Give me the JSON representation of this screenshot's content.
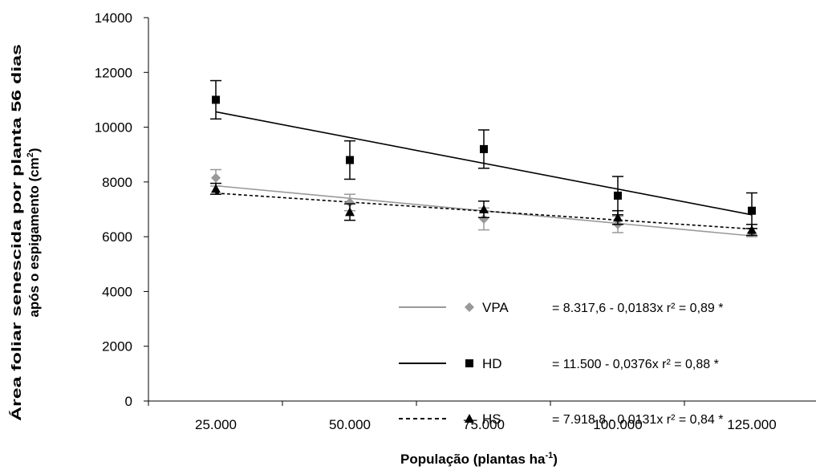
{
  "chart_data": {
    "type": "scatter",
    "xlabel": "População (plantas ha",
    "xlabel_sup": "-1",
    "xlabel_end": ")",
    "ylabel_line1": "Área foliar senescida por planta 56 dias",
    "ylabel_line2": "após o espigamento (cm",
    "ylabel_sup": "2",
    "ylabel_end": ")",
    "x": [
      25000,
      50000,
      75000,
      100000,
      125000
    ],
    "x_tick_labels": [
      "25.000",
      "50.000",
      "75.000",
      "100.000",
      "125.000"
    ],
    "ylim": [
      0,
      14000
    ],
    "y_ticks": [
      0,
      2000,
      4000,
      6000,
      8000,
      10000,
      12000,
      14000
    ],
    "y_tick_labels": [
      "0",
      "2000",
      "4000",
      "6000",
      "8000",
      "10000",
      "12000",
      "14000"
    ],
    "grid": false,
    "legend_position": "bottom-right",
    "series": [
      {
        "name": "VPA",
        "marker": "diamond",
        "color": "#999999",
        "line_style": "solid",
        "values": [
          8150,
          7250,
          6650,
          6450,
          6150
        ],
        "errors": [
          300,
          300,
          400,
          300,
          150
        ],
        "fit": {
          "intercept": 8317.6,
          "slope": -0.0183
        },
        "equation": "= 8.317,6 - 0,0183x r² = 0,89 *"
      },
      {
        "name": "HD",
        "marker": "square",
        "color": "#000000",
        "line_style": "solid",
        "values": [
          11000,
          8800,
          9200,
          7500,
          6950
        ],
        "errors": [
          700,
          700,
          700,
          700,
          650
        ],
        "fit": {
          "intercept": 11500,
          "slope": -0.0376
        },
        "equation": "= 11.500 - 0,0376x r² = 0,88 *"
      },
      {
        "name": "HS",
        "marker": "triangle",
        "color": "#000000",
        "line_style": "dashed",
        "values": [
          7750,
          6900,
          7000,
          6700,
          6250
        ],
        "errors": [
          200,
          300,
          300,
          250,
          200
        ],
        "fit": {
          "intercept": 7918.8,
          "slope": -0.0131
        },
        "equation": "= 7.918,8 - 0,0131x r² = 0,84 *"
      }
    ]
  }
}
